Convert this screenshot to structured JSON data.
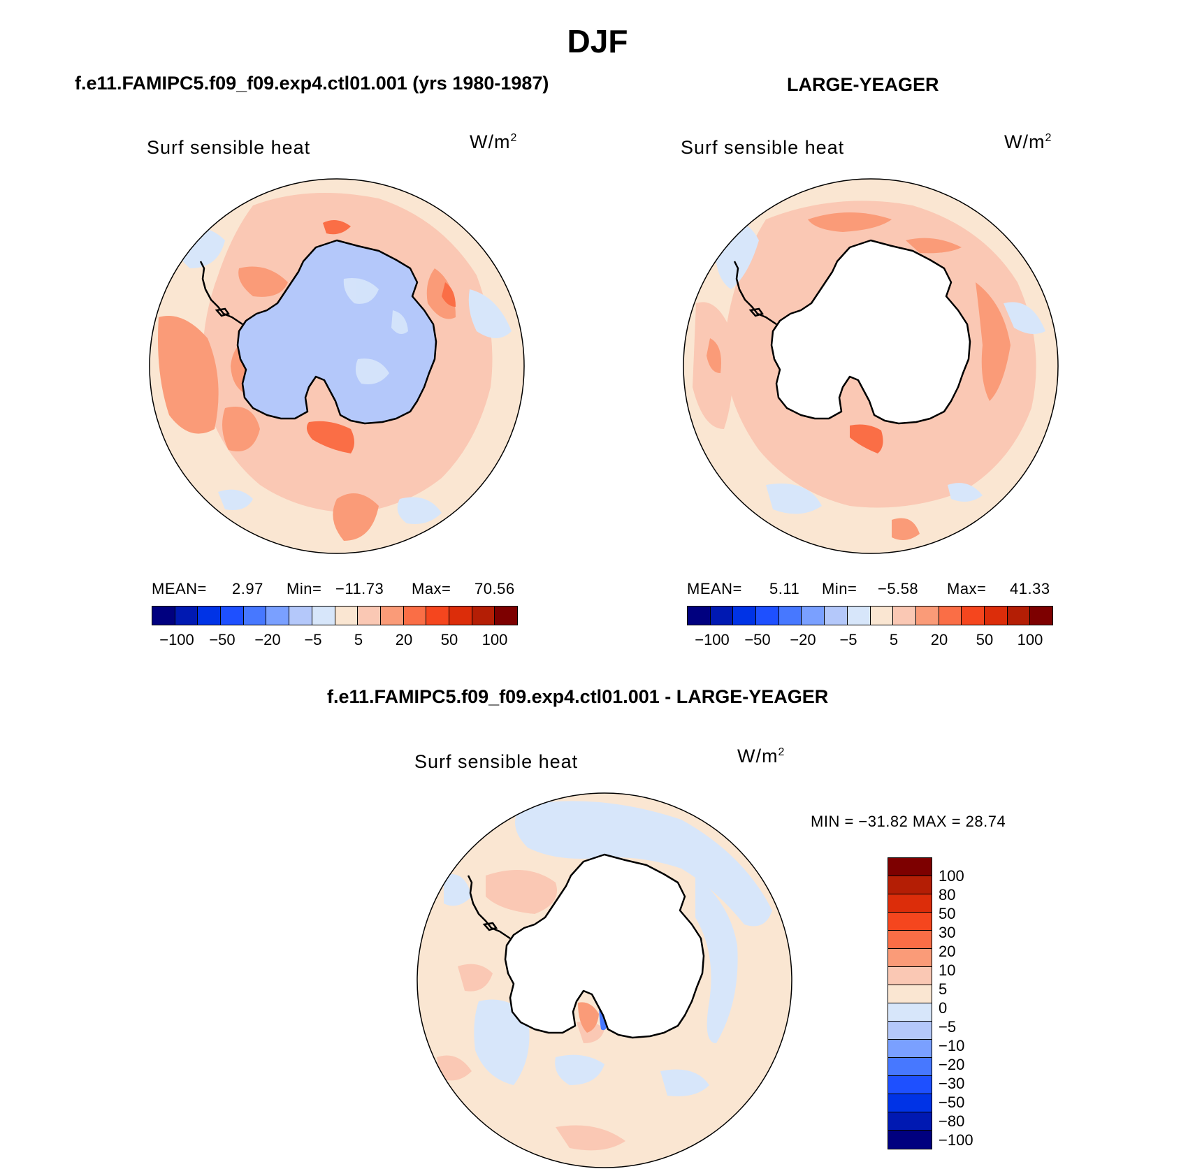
{
  "figure": {
    "title": "DJF"
  },
  "panels": [
    {
      "title": "f.e11.FAMIPC5.f09_f09.exp4.ctl01.001 (yrs 1980-1987)",
      "variable": "Surf sensible heat",
      "units": "W/m",
      "units_exp": "2",
      "stats": {
        "mean_label": "MEAN=",
        "mean": "2.97",
        "min_label": "Min=",
        "min": "−11.73",
        "max_label": "Max=",
        "max": "70.56"
      },
      "ice_fill": "#b4c8fa"
    },
    {
      "title": "LARGE-YEAGER",
      "variable": "Surf sensible heat",
      "units": "W/m",
      "units_exp": "2",
      "stats": {
        "mean_label": "MEAN=",
        "mean": "5.11",
        "min_label": "Min=",
        "min": "−5.58",
        "max_label": "Max=",
        "max": "41.33"
      },
      "ice_fill": "#ffffff"
    },
    {
      "title": "f.e11.FAMIPC5.f09_f09.exp4.ctl01.001 - LARGE-YEAGER",
      "variable": "Surf sensible heat",
      "units": "W/m",
      "units_exp": "2",
      "minmax": "MIN = −31.82  MAX =   28.74",
      "ice_fill": "#ffffff"
    }
  ],
  "horizontal_colorbar": {
    "colors": [
      "#00007f",
      "#0019b2",
      "#0033e6",
      "#1e50ff",
      "#4778ff",
      "#7aa0ff",
      "#b4c8fa",
      "#d7e6fa",
      "#fae6d2",
      "#fac8b4",
      "#fa9b78",
      "#fa6e46",
      "#f5461e",
      "#dc2d0a",
      "#b41e05",
      "#7d0000"
    ],
    "labels": [
      "−100",
      "−50",
      "−20",
      "−5",
      "5",
      "20",
      "50",
      "100"
    ]
  },
  "vertical_colorbar": {
    "colors": [
      "#7d0000",
      "#b41e05",
      "#dc2d0a",
      "#f5461e",
      "#fa6e46",
      "#fa9b78",
      "#fac8b4",
      "#fae6d2",
      "#d7e6fa",
      "#b4c8fa",
      "#7aa0ff",
      "#4778ff",
      "#1e50ff",
      "#0033e6",
      "#0019b2",
      "#00007f"
    ],
    "labels": [
      "100",
      "80",
      "50",
      "30",
      "20",
      "10",
      "5",
      "0",
      "−5",
      "−10",
      "−20",
      "−30",
      "−50",
      "−80",
      "−100"
    ]
  }
}
